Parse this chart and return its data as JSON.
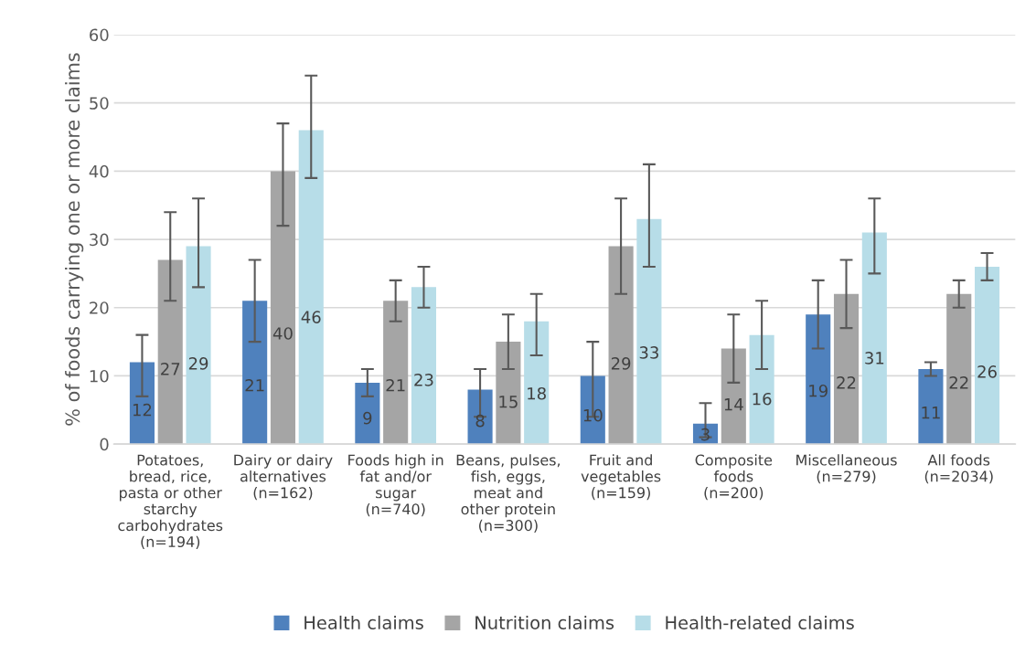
{
  "chart_data": {
    "type": "bar",
    "ylabel": "% of foods carrying one or more claims",
    "categories": [
      "Potatoes,\nbread, rice,\npasta or other\nstarchy\ncarbohydrates\n(n=194)",
      "Dairy or dairy\nalternatives\n(n=162)",
      "Foods high in\nfat and/or\nsugar\n(n=740)",
      "Beans, pulses,\nfish, eggs,\nmeat and\nother protein\n(n=300)",
      "Fruit and\nvegetables\n(n=159)",
      "Composite\nfoods\n(n=200)",
      "Miscellaneous\n(n=279)",
      "All foods\n(n=2034)"
    ],
    "series": [
      {
        "name": "Health claims",
        "color": "#4f81bd",
        "values": [
          12,
          21,
          9,
          8,
          10,
          3,
          19,
          11
        ],
        "errors": [
          [
            7,
            16
          ],
          [
            15,
            27
          ],
          [
            7,
            11
          ],
          [
            4,
            11
          ],
          [
            4,
            15
          ],
          [
            1,
            6
          ],
          [
            14,
            24
          ],
          [
            10,
            12
          ]
        ]
      },
      {
        "name": "Nutrition claims",
        "color": "#a5a5a5",
        "values": [
          27,
          40,
          21,
          15,
          29,
          14,
          22,
          22
        ],
        "errors": [
          [
            21,
            34
          ],
          [
            32,
            47
          ],
          [
            18,
            24
          ],
          [
            11,
            19
          ],
          [
            22,
            36
          ],
          [
            9,
            19
          ],
          [
            17,
            27
          ],
          [
            20,
            24
          ]
        ]
      },
      {
        "name": "Health-related claims",
        "color": "#b7dde8",
        "values": [
          29,
          46,
          23,
          18,
          33,
          16,
          31,
          26
        ],
        "errors": [
          [
            23,
            36
          ],
          [
            39,
            54
          ],
          [
            20,
            26
          ],
          [
            13,
            22
          ],
          [
            26,
            41
          ],
          [
            11,
            21
          ],
          [
            25,
            36
          ],
          [
            24,
            28
          ]
        ]
      }
    ],
    "ylim": [
      0,
      60
    ],
    "yticks": [
      0,
      10,
      20,
      30,
      40,
      50,
      60
    ],
    "grid": "y",
    "legend": "bottom",
    "data_labels": true
  }
}
